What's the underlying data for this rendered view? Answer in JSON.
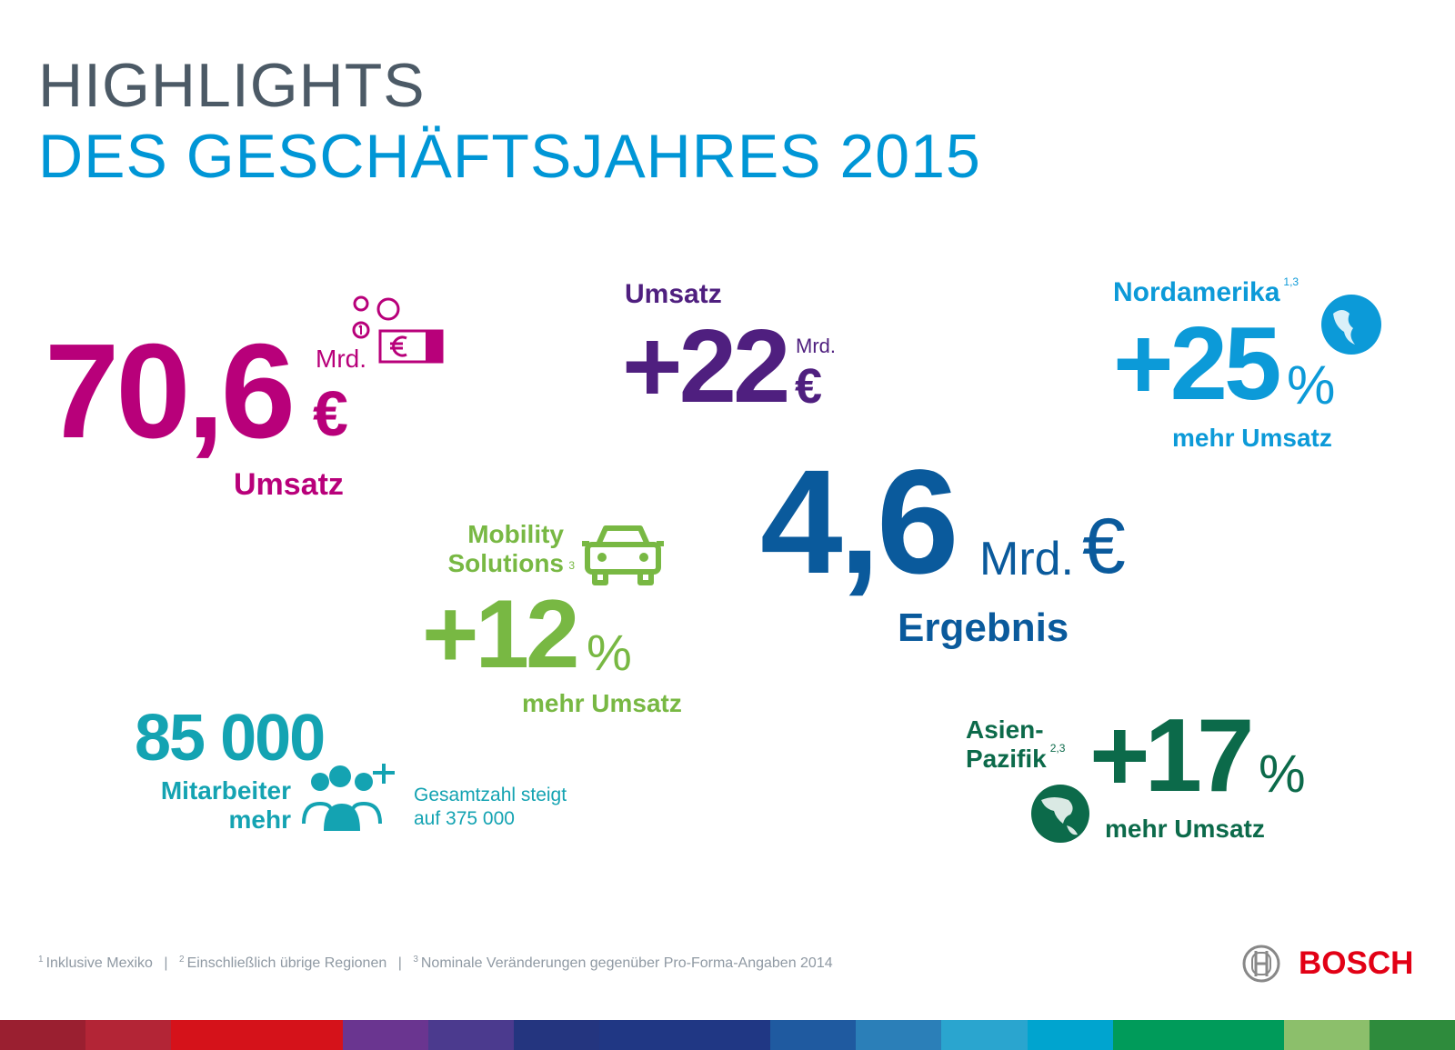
{
  "title": {
    "line1": "HIGHLIGHTS",
    "line2": "DES GESCHÄFTSJAHRES 2015"
  },
  "revenue": {
    "value": "70,6",
    "unit_small": "Mrd.",
    "currency": "€",
    "label": "Umsatz",
    "icon": "money-coins-banknote-icon"
  },
  "revenue_growth": {
    "label": "Umsatz",
    "value": "+22",
    "unit_small": "Mrd.",
    "currency": "€"
  },
  "north_america": {
    "label": "Nordamerika",
    "footnote": "1,3",
    "value": "+25",
    "percent": "%",
    "sub": "mehr Umsatz",
    "icon": "globe-americas-icon"
  },
  "result": {
    "value": "4,6",
    "unit": "Mrd.",
    "currency": "€",
    "label": "Ergebnis"
  },
  "mobility": {
    "label1": "Mobility",
    "label2": "Solutions",
    "footnote": "3",
    "value": "+12",
    "percent": "%",
    "sub": "mehr Umsatz",
    "icon": "car-icon"
  },
  "employees": {
    "value": "85 000",
    "label1": "Mitarbeiter",
    "label2": "mehr",
    "icon": "people-plus-icon",
    "note1": "Gesamtzahl steigt",
    "note2": "auf 375 000"
  },
  "asia": {
    "label1": "Asien-",
    "label2": "Pazifik",
    "footnote": "2,3",
    "value": "+17",
    "percent": "%",
    "sub": "mehr Umsatz",
    "icon": "globe-asia-icon"
  },
  "footnotes": [
    {
      "n": "1",
      "text": "Inklusive Mexiko"
    },
    {
      "n": "2",
      "text": "Einschließlich übrige Regionen"
    },
    {
      "n": "3",
      "text": "Nominale Veränderungen gegenüber Pro-Forma-Angaben 2014"
    }
  ],
  "separator": "|",
  "brand": {
    "name": "BOSCH",
    "color": "#e20015"
  },
  "colors": {
    "band": [
      "#9a1f30",
      "#b32536",
      "#d5121a",
      "#d5121a",
      "#6a3590",
      "#4b3a8e",
      "#24357f",
      "#203784",
      "#203784",
      "#1f5aa0",
      "#2b7fb8",
      "#2aa5cf",
      "#00a4cf",
      "#009b5a",
      "#009b5a",
      "#8cbf6b",
      "#2e8b3c"
    ]
  }
}
